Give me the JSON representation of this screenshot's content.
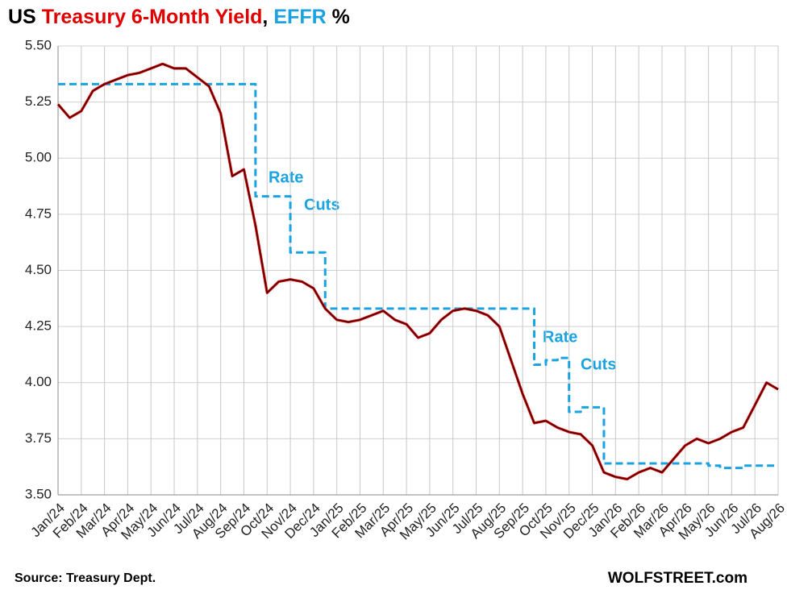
{
  "chart_data": {
    "type": "line",
    "title_parts": [
      "US",
      "Treasury 6-Month Yield",
      ",",
      "EFFR",
      "%"
    ],
    "title_colors": [
      "#000000",
      "#e00000",
      "#000000",
      "#1aa3e0",
      "#000000"
    ],
    "categories": [
      "Jan/24",
      null,
      "Feb/24",
      null,
      "Mar/24",
      null,
      "Apr/24",
      null,
      "May/24",
      null,
      "Jun/24",
      null,
      "Jul/24",
      null,
      "Aug/24",
      null,
      "Sep/24",
      null,
      "Oct/24",
      null,
      "Nov/24",
      null,
      "Dec/24",
      null,
      "Jan/25",
      null,
      "Feb/25",
      null,
      "Mar/25",
      null,
      "Apr/25",
      null,
      "May/25",
      null,
      "Jun/25",
      null,
      "Jul/25",
      null,
      "Aug/25",
      null,
      "Sep/25",
      null,
      "Oct/25",
      null,
      "Nov/25",
      null,
      "Dec/25",
      null,
      "Jan/26",
      null,
      "Feb/26",
      null,
      "Mar/26",
      null,
      "Apr/26",
      null,
      "May/26",
      null,
      "Jun/26",
      null,
      "Jul/26",
      null,
      "Aug/26"
    ],
    "series": [
      {
        "name": "Treasury 6-Month Yield",
        "color": "#e00000",
        "outline": "#000000",
        "step": false,
        "values": [
          5.24,
          5.18,
          5.21,
          5.3,
          5.33,
          5.35,
          5.37,
          5.38,
          5.4,
          5.42,
          5.4,
          5.4,
          5.36,
          5.32,
          5.2,
          4.92,
          4.95,
          4.7,
          4.4,
          4.45,
          4.46,
          4.45,
          4.42,
          4.33,
          4.28,
          4.27,
          4.28,
          4.3,
          4.32,
          4.28,
          4.26,
          4.2,
          4.22,
          4.28,
          4.32,
          4.33,
          4.32,
          4.3,
          4.25,
          4.1,
          3.95,
          3.82,
          3.83,
          3.8,
          3.78,
          3.77,
          3.72,
          3.6,
          3.58,
          3.57,
          3.6,
          3.62,
          3.6,
          3.66,
          3.72,
          3.75,
          3.73,
          3.75,
          3.78,
          3.8,
          3.9,
          4.0,
          3.97
        ]
      },
      {
        "name": "EFFR",
        "color": "#1aa3e0",
        "dashed": true,
        "step": true,
        "values": [
          5.33,
          5.33,
          5.33,
          5.33,
          5.33,
          5.33,
          5.33,
          5.33,
          5.33,
          5.33,
          5.33,
          5.33,
          5.33,
          5.33,
          5.33,
          5.33,
          5.33,
          4.83,
          4.83,
          4.83,
          4.58,
          4.58,
          4.58,
          4.33,
          4.33,
          4.33,
          4.33,
          4.33,
          4.33,
          4.33,
          4.33,
          4.33,
          4.33,
          4.33,
          4.33,
          4.33,
          4.33,
          4.33,
          4.33,
          4.33,
          4.33,
          4.08,
          4.1,
          4.11,
          3.87,
          3.89,
          3.89,
          3.64,
          3.64,
          3.64,
          3.64,
          3.64,
          3.64,
          3.64,
          3.64,
          3.64,
          3.63,
          3.62,
          3.62,
          3.63,
          3.63,
          3.63,
          3.63
        ]
      }
    ],
    "ylim": [
      3.5,
      5.5
    ],
    "yticks": [
      {
        "value": 3.5,
        "label": "3.50"
      },
      {
        "value": 3.75,
        "label": "3.75"
      },
      {
        "value": 4,
        "label": "4.00"
      },
      {
        "value": 4.25,
        "label": "4.25"
      },
      {
        "value": 4.5,
        "label": "4.50"
      },
      {
        "value": 4.75,
        "label": "4.75"
      },
      {
        "value": 5,
        "label": "5.00"
      },
      {
        "value": 5.25,
        "label": "5.25"
      },
      {
        "value": 5.5,
        "label": "5.50"
      }
    ],
    "grid": true,
    "annotations": [
      "Rate",
      "Cuts",
      "Rate",
      "Cuts"
    ],
    "source": "Source: Treasury Dept.",
    "credit": "WOLFSTREET.com"
  }
}
